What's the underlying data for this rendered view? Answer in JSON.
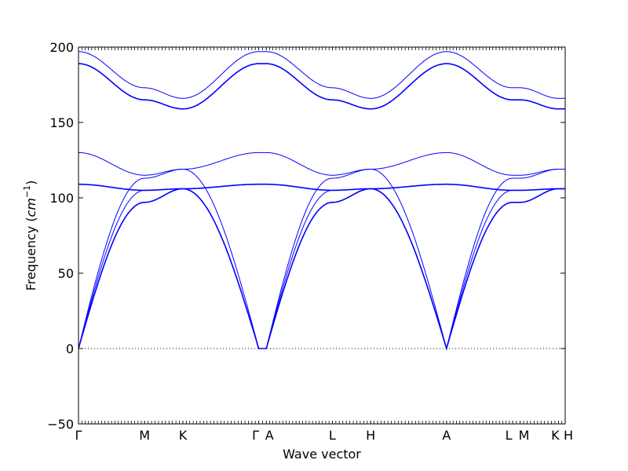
{
  "chart_data": {
    "type": "line",
    "title": "",
    "xlabel": "Wave vector",
    "ylabel_text": "Frequency",
    "ylabel_unit": "cm",
    "ylabel_exp": "−1",
    "ylim": [
      -50,
      200
    ],
    "yticks": [
      {
        "value": -50,
        "label": "−50"
      },
      {
        "value": 0,
        "label": "0"
      },
      {
        "value": 50,
        "label": "50"
      },
      {
        "value": 100,
        "label": "100"
      },
      {
        "value": 150,
        "label": "150"
      },
      {
        "value": 200,
        "label": "200"
      }
    ],
    "xlim": [
      0,
      6.48
    ],
    "high_symmetry_points": [
      {
        "label": "Γ",
        "x": 0
      },
      {
        "label": "M",
        "x": 0.88
      },
      {
        "label": "K",
        "x": 1.39
      },
      {
        "label": "Γ",
        "x": 2.4
      },
      {
        "label": "A",
        "x": 2.5
      },
      {
        "label": "L",
        "x": 3.38
      },
      {
        "label": "H",
        "x": 3.89
      },
      {
        "label": "A",
        "x": 4.9
      },
      {
        "label": "L",
        "x": 5.78
      },
      {
        "label": "M",
        "x": 5.88
      },
      {
        "label": "K",
        "x": 6.39
      },
      {
        "label": "H",
        "x": 6.48
      }
    ],
    "zero_line": {
      "value": 0,
      "style": "dotted"
    },
    "grid": false,
    "line_color": "#0000ff",
    "series": [
      {
        "values_at_points": [
          0,
          97,
          106,
          0,
          0,
          97,
          106,
          0,
          97,
          97,
          106,
          106
        ]
      },
      {
        "values_at_points": [
          0,
          105,
          106,
          0,
          0,
          105,
          106,
          0,
          105,
          105,
          106,
          106
        ]
      },
      {
        "values_at_points": [
          0,
          113,
          119,
          0,
          0,
          113,
          119,
          0,
          113,
          113,
          119,
          119
        ]
      },
      {
        "values_at_points": [
          109,
          105,
          106,
          109,
          109,
          105,
          106,
          109,
          105,
          105,
          106,
          106
        ]
      },
      {
        "values_at_points": [
          130,
          115,
          119,
          130,
          130,
          115,
          119,
          130,
          115,
          115,
          119,
          119
        ]
      },
      {
        "values_at_points": [
          189,
          165,
          159,
          189,
          189,
          165,
          159,
          189,
          165,
          165,
          159,
          159
        ]
      },
      {
        "values_at_points": [
          197,
          173,
          166,
          197,
          197,
          173,
          166,
          197,
          173,
          173,
          166,
          166
        ]
      }
    ]
  }
}
